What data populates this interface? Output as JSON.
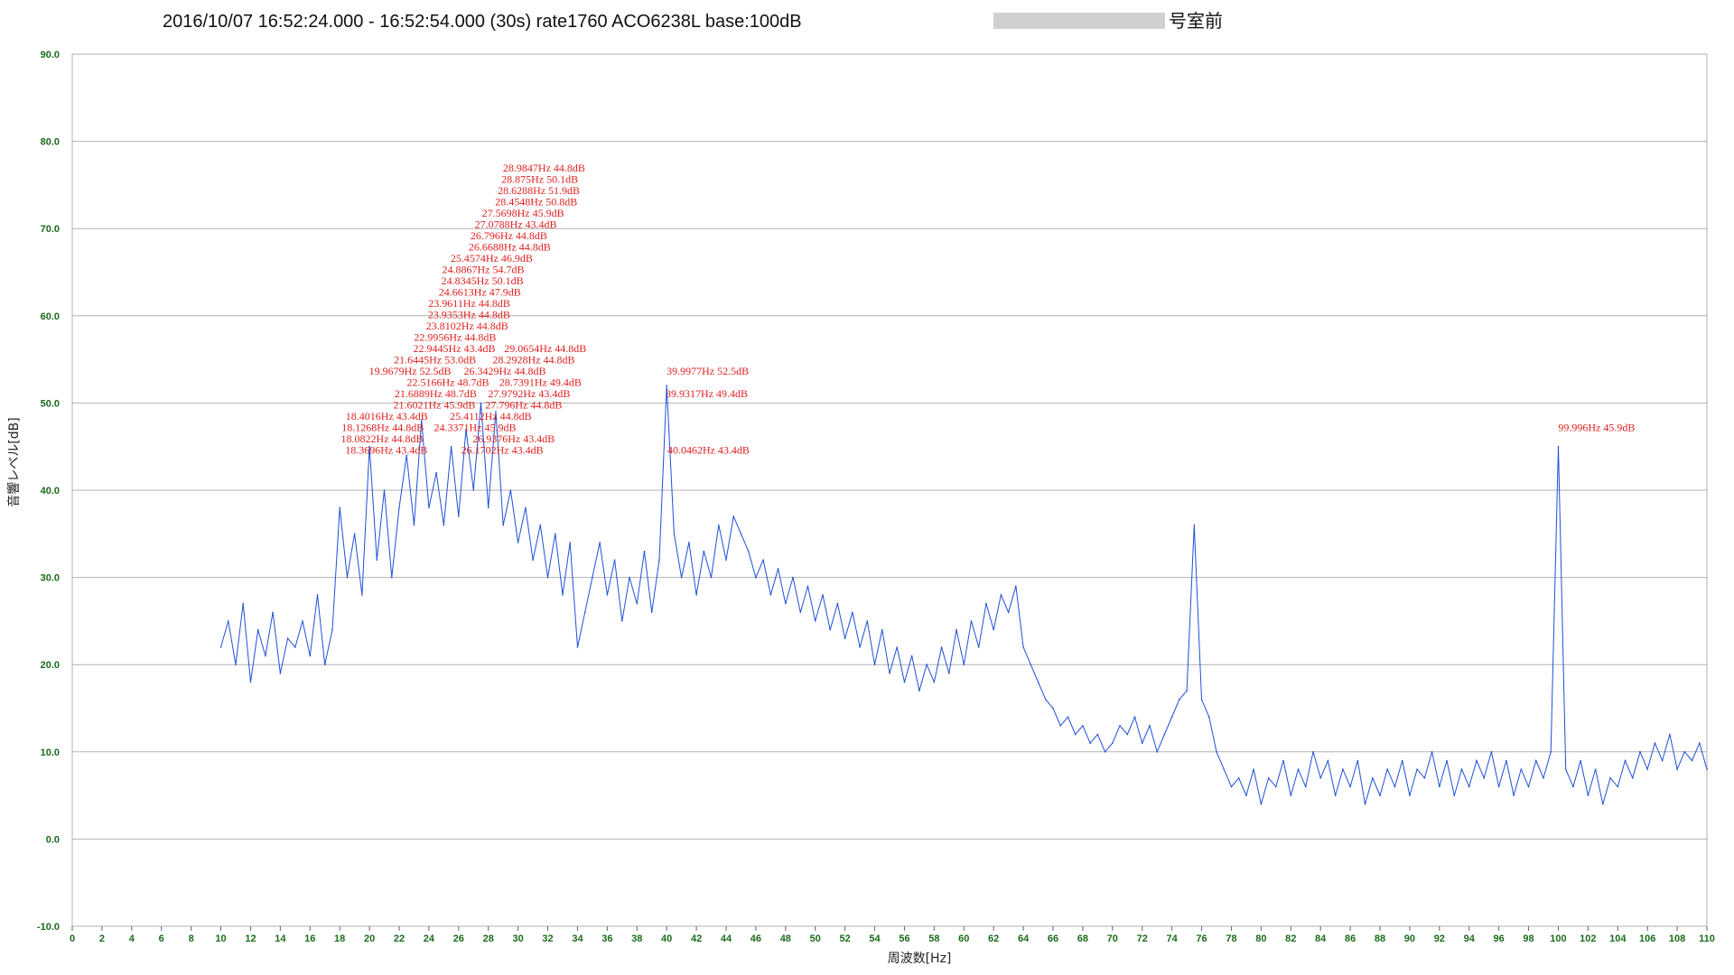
{
  "chart_data": {
    "type": "line",
    "title": "2016/10/07 16:52:24.000 - 16:52:54.000 (30s) rate1760 ACO6238L base:100dB",
    "title_suffix": "号室前",
    "xlabel": "周波数[Hz]",
    "ylabel": "音響レベル[dB]",
    "xlim": [
      0,
      110
    ],
    "ylim": [
      -10,
      90
    ],
    "x_ticks": [
      0,
      2,
      4,
      6,
      8,
      10,
      12,
      14,
      16,
      18,
      20,
      22,
      24,
      26,
      28,
      30,
      32,
      34,
      36,
      38,
      40,
      42,
      44,
      46,
      48,
      50,
      52,
      54,
      56,
      58,
      60,
      62,
      64,
      66,
      68,
      70,
      72,
      74,
      76,
      78,
      80,
      82,
      84,
      86,
      88,
      90,
      92,
      94,
      96,
      98,
      100,
      102,
      104,
      106,
      108,
      110
    ],
    "y_ticks": [
      "-10.0",
      "0.0",
      "10.0",
      "20.0",
      "30.0",
      "40.0",
      "50.0",
      "60.0",
      "70.0",
      "80.0",
      "90.0"
    ],
    "grid": true,
    "legend": "none",
    "line_color": "#1f4fd6",
    "label_color": "#e02020",
    "series": [
      {
        "x": [
          10,
          10.5,
          11,
          11.5,
          12,
          12.5,
          13,
          13.5,
          14,
          14.5,
          15,
          15.5,
          16,
          16.5,
          17,
          17.5,
          18,
          18.5,
          19,
          19.5,
          20,
          20.5,
          21,
          21.5,
          22,
          22.5,
          23,
          23.5,
          24,
          24.5,
          25,
          25.5,
          26,
          26.5,
          27,
          27.5,
          28,
          28.5,
          29,
          29.5,
          30,
          30.5,
          31,
          31.5,
          32,
          32.5,
          33,
          33.5,
          34,
          34.5,
          35,
          35.5,
          36,
          36.5,
          37,
          37.5,
          38,
          38.5,
          39,
          39.5,
          40,
          40.5,
          41,
          41.5,
          42,
          42.5,
          43,
          43.5,
          44,
          44.5,
          45,
          45.5,
          46,
          46.5,
          47,
          47.5,
          48,
          48.5,
          49,
          49.5,
          50,
          50.5,
          51,
          51.5,
          52,
          52.5,
          53,
          53.5,
          54,
          54.5,
          55,
          55.5,
          56,
          56.5,
          57,
          57.5,
          58,
          58.5,
          59,
          59.5,
          60,
          60.5,
          61,
          61.5,
          62,
          62.5,
          63,
          63.5,
          64,
          64.5,
          65,
          65.5,
          66,
          66.5,
          67,
          67.5,
          68,
          68.5,
          69,
          69.5,
          70,
          70.5,
          71,
          71.5,
          72,
          72.5,
          73,
          73.5,
          74,
          74.5,
          75,
          75.5,
          76,
          76.5,
          77,
          77.5,
          78,
          78.5,
          79,
          79.5,
          80,
          80.5,
          81,
          81.5,
          82,
          82.5,
          83,
          83.5,
          84,
          84.5,
          85,
          85.5,
          86,
          86.5,
          87,
          87.5,
          88,
          88.5,
          89,
          89.5,
          90,
          90.5,
          91,
          91.5,
          92,
          92.5,
          93,
          93.5,
          94,
          94.5,
          95,
          95.5,
          96,
          96.5,
          97,
          97.5,
          98,
          98.5,
          99,
          99.5,
          100,
          100.5,
          101,
          101.5,
          102,
          102.5,
          103,
          103.5,
          104,
          104.5,
          105,
          105.5,
          106,
          106.5,
          107,
          107.5,
          108,
          108.5,
          109,
          109.5,
          110
        ],
        "y": [
          22,
          25,
          20,
          27,
          18,
          24,
          21,
          26,
          19,
          23,
          22,
          25,
          21,
          28,
          20,
          24,
          38,
          30,
          35,
          28,
          45,
          32,
          40,
          30,
          38,
          44,
          36,
          48,
          38,
          42,
          36,
          45,
          37,
          47,
          40,
          50,
          38,
          49,
          36,
          40,
          34,
          38,
          32,
          36,
          30,
          35,
          28,
          34,
          22,
          26,
          30,
          34,
          28,
          32,
          25,
          30,
          27,
          33,
          26,
          32,
          52,
          35,
          30,
          34,
          28,
          33,
          30,
          36,
          32,
          37,
          35,
          33,
          30,
          32,
          28,
          31,
          27,
          30,
          26,
          29,
          25,
          28,
          24,
          27,
          23,
          26,
          22,
          25,
          20,
          24,
          19,
          22,
          18,
          21,
          17,
          20,
          18,
          22,
          19,
          24,
          20,
          25,
          22,
          27,
          24,
          28,
          26,
          29,
          22,
          20,
          18,
          16,
          15,
          13,
          14,
          12,
          13,
          11,
          12,
          10,
          11,
          13,
          12,
          14,
          11,
          13,
          10,
          12,
          14,
          16,
          17,
          36,
          16,
          14,
          10,
          8,
          6,
          7,
          5,
          8,
          4,
          7,
          6,
          9,
          5,
          8,
          6,
          10,
          7,
          9,
          5,
          8,
          6,
          9,
          4,
          7,
          5,
          8,
          6,
          9,
          5,
          8,
          7,
          10,
          6,
          9,
          5,
          8,
          6,
          9,
          7,
          10,
          6,
          9,
          5,
          8,
          6,
          9,
          7,
          10,
          45,
          8,
          6,
          9,
          5,
          8,
          4,
          7,
          6,
          9,
          7,
          10,
          8,
          11,
          9,
          12,
          8,
          10,
          9,
          11,
          8
        ]
      }
    ],
    "annotations": [
      {
        "x": 28.9847,
        "y": 44.8,
        "text": "28.9847Hz  44.8dB",
        "row": 0
      },
      {
        "x": 28.875,
        "y": 50.1,
        "text": "28.875Hz  50.1dB",
        "row": 1
      },
      {
        "x": 28.6288,
        "y": 51.9,
        "text": "28.6288Hz  51.9dB",
        "row": 2
      },
      {
        "x": 28.4548,
        "y": 50.8,
        "text": "28.4548Hz  50.8dB",
        "row": 3
      },
      {
        "x": 27.5698,
        "y": 45.9,
        "text": "27.5698Hz  45.9dB",
        "row": 4
      },
      {
        "x": 27.0788,
        "y": 43.4,
        "text": "27.0788Hz  43.4dB",
        "row": 5
      },
      {
        "x": 26.796,
        "y": 44.8,
        "text": "26.796Hz  44.8dB",
        "row": 6
      },
      {
        "x": 26.6688,
        "y": 44.8,
        "text": "26.6688Hz  44.8dB",
        "row": 7
      },
      {
        "x": 25.4574,
        "y": 46.9,
        "text": "25.4574Hz  46.9dB",
        "row": 8
      },
      {
        "x": 24.8867,
        "y": 54.7,
        "text": "24.8867Hz  54.7dB",
        "row": 9
      },
      {
        "x": 24.8345,
        "y": 50.1,
        "text": "24.8345Hz  50.1dB",
        "row": 10
      },
      {
        "x": 24.6613,
        "y": 47.9,
        "text": "24.6613Hz  47.9dB",
        "row": 11
      },
      {
        "x": 23.9611,
        "y": 44.8,
        "text": "23.9611Hz  44.8dB",
        "row": 12
      },
      {
        "x": 23.9353,
        "y": 44.8,
        "text": "23.9353Hz  44.8dB",
        "row": 13
      },
      {
        "x": 23.8102,
        "y": 44.8,
        "text": "23.8102Hz  44.8dB",
        "row": 14
      },
      {
        "x": 22.9956,
        "y": 44.8,
        "text": "22.9956Hz  44.8dB",
        "row": 15
      },
      {
        "x": 22.9445,
        "y": 43.4,
        "text": "22.9445Hz  43.4dB",
        "row": 16
      },
      {
        "x": 29.0654,
        "y": 44.8,
        "text": "29.0654Hz  44.8dB",
        "row": 16
      },
      {
        "x": 21.6445,
        "y": 53.0,
        "text": "21.6445Hz  53.0dB",
        "row": 17
      },
      {
        "x": 28.2928,
        "y": 44.8,
        "text": "28.2928Hz  44.8dB",
        "row": 17
      },
      {
        "x": 19.9679,
        "y": 52.5,
        "text": "19.9679Hz  52.5dB",
        "row": 18
      },
      {
        "x": 26.3429,
        "y": 44.8,
        "text": "26.3429Hz  44.8dB",
        "row": 18
      },
      {
        "x": 39.9977,
        "y": 52.5,
        "text": "39.9977Hz  52.5dB",
        "row": 18
      },
      {
        "x": 22.5166,
        "y": 48.7,
        "text": "22.5166Hz  48.7dB",
        "row": 19
      },
      {
        "x": 28.7391,
        "y": 49.4,
        "text": "28.7391Hz  49.4dB",
        "row": 19
      },
      {
        "x": 21.6889,
        "y": 48.7,
        "text": "21.6889Hz  48.7dB",
        "row": 20
      },
      {
        "x": 27.9792,
        "y": 43.4,
        "text": "27.9792Hz  43.4dB",
        "row": 20
      },
      {
        "x": 39.9317,
        "y": 49.4,
        "text": "39.9317Hz  49.4dB",
        "row": 20
      },
      {
        "x": 21.6021,
        "y": 45.9,
        "text": "21.6021Hz  45.9dB",
        "row": 21
      },
      {
        "x": 27.796,
        "y": 44.8,
        "text": "27.796Hz  44.8dB",
        "row": 21
      },
      {
        "x": 18.4016,
        "y": 43.4,
        "text": "18.4016Hz  43.4dB",
        "row": 22
      },
      {
        "x": 25.4112,
        "y": 44.8,
        "text": "25.4112Hz  44.8dB",
        "row": 22
      },
      {
        "x": 18.1268,
        "y": 44.8,
        "text": "18.1268Hz  44.8dB",
        "row": 23
      },
      {
        "x": 24.3371,
        "y": 45.9,
        "text": "24.3371Hz  45.9dB",
        "row": 23
      },
      {
        "x": 99.996,
        "y": 45.9,
        "text": "99.996Hz  45.9dB",
        "row": 23
      },
      {
        "x": 18.0822,
        "y": 44.8,
        "text": "18.0822Hz  44.8dB",
        "row": 24
      },
      {
        "x": 26.9376,
        "y": 43.4,
        "text": "26.9376Hz  43.4dB",
        "row": 24
      },
      {
        "x": 18.3696,
        "y": 43.4,
        "text": "18.3696Hz  43.4dB",
        "row": 25
      },
      {
        "x": 26.1702,
        "y": 43.4,
        "text": "26.1702Hz  43.4dB",
        "row": 25
      },
      {
        "x": 40.0462,
        "y": 43.4,
        "text": "40.0462Hz  43.4dB",
        "row": 25
      }
    ]
  }
}
